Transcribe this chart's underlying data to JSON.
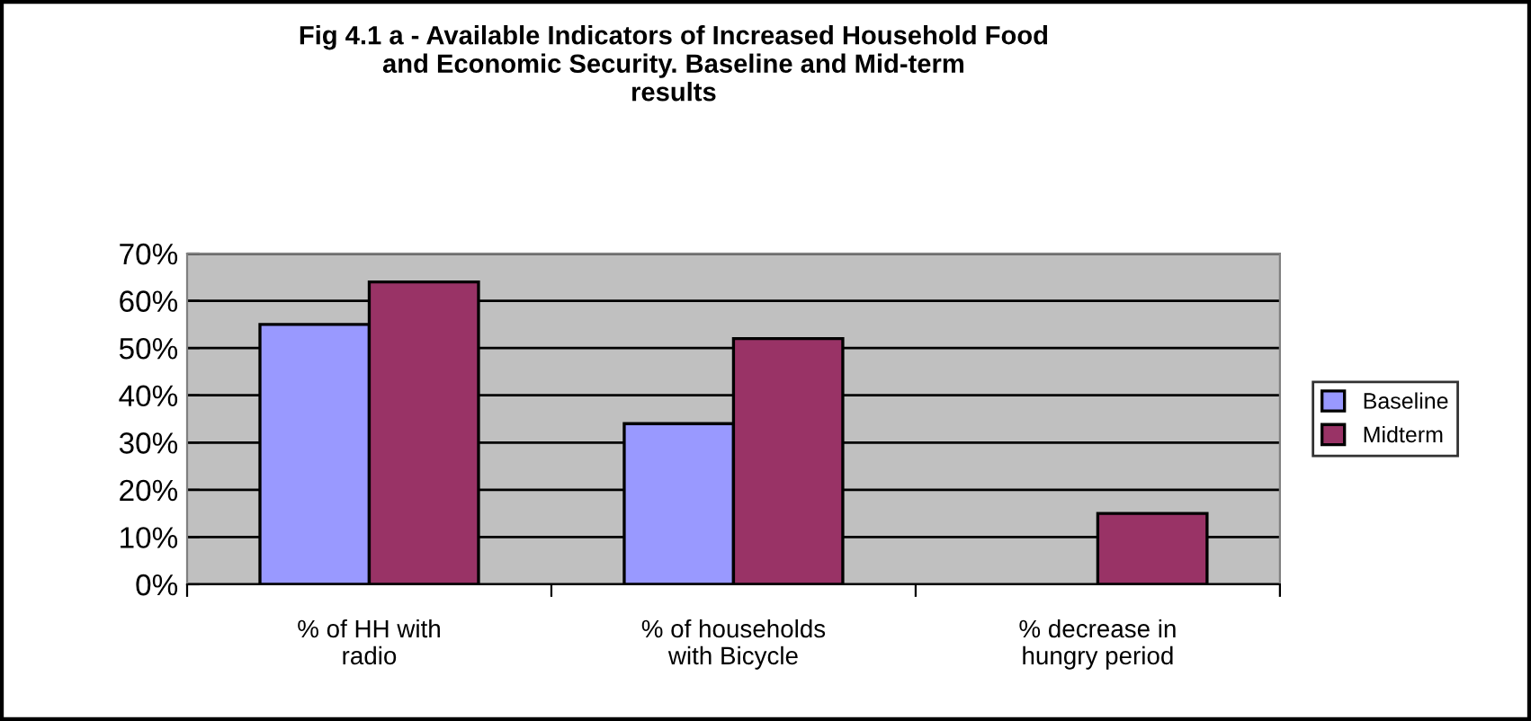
{
  "chart_data": {
    "type": "bar",
    "title": "Fig 4.1 a - Available Indicators of Increased Household Food\nand Economic Security. Baseline and Mid-term\nresults",
    "categories": [
      "% of HH with\nradio",
      "% of households\nwith Bicycle",
      "% decrease in\nhungry period"
    ],
    "series": [
      {
        "name": "Baseline",
        "color": "#9999ff",
        "values": [
          55,
          34,
          null
        ]
      },
      {
        "name": "Midterm",
        "color": "#993366",
        "values": [
          64,
          52,
          15
        ]
      }
    ],
    "ylim": [
      0,
      70
    ],
    "yticks": [
      {
        "value": 0,
        "label": "0%"
      },
      {
        "value": 10,
        "label": "10%"
      },
      {
        "value": 20,
        "label": "20%"
      },
      {
        "value": 30,
        "label": "30%"
      },
      {
        "value": 40,
        "label": "40%"
      },
      {
        "value": 50,
        "label": "50%"
      },
      {
        "value": 60,
        "label": "60%"
      },
      {
        "value": 70,
        "label": "70%"
      }
    ],
    "grid": "y",
    "legend": "right"
  }
}
